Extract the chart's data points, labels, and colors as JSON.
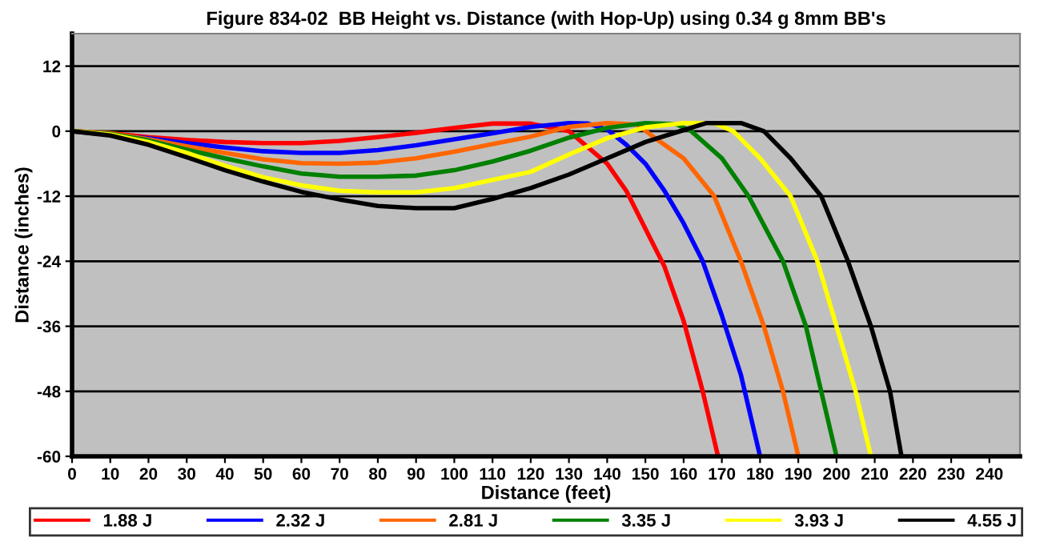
{
  "chart_data": {
    "type": "line",
    "title": "Figure 834-02  BB Height vs. Distance (with Hop-Up) using 0.34 g 8mm BB's",
    "xlabel": "Distance (feet)",
    "ylabel": "Distance (inches)",
    "xlim": [
      0,
      248
    ],
    "xticks": [
      0,
      10,
      20,
      30,
      40,
      50,
      60,
      70,
      80,
      90,
      100,
      110,
      120,
      130,
      140,
      150,
      160,
      170,
      180,
      190,
      200,
      210,
      220,
      230,
      240
    ],
    "ylim": [
      -60,
      18
    ],
    "yticks": [
      -60,
      -48,
      -36,
      -24,
      -12,
      0,
      12
    ],
    "grid": "y",
    "legend": "bottom",
    "marker": "none",
    "line_style": "solid",
    "series": [
      {
        "name": "1.88 J",
        "color": "#ff0000",
        "x": [
          0,
          10,
          20,
          30,
          40,
          50,
          60,
          70,
          80,
          90,
          100,
          110,
          120,
          130,
          140,
          145,
          150,
          155,
          160,
          165,
          169
        ],
        "values": [
          0,
          -0.4,
          -1.1,
          -1.6,
          -2.0,
          -2.2,
          -2.2,
          -1.8,
          -1.1,
          -0.3,
          0.6,
          1.4,
          1.4,
          0,
          -6,
          -11,
          -18,
          -25,
          -35,
          -48,
          -60
        ]
      },
      {
        "name": "2.32 J",
        "color": "#0000ff",
        "x": [
          0,
          20,
          30,
          40,
          50,
          60,
          70,
          80,
          90,
          100,
          110,
          120,
          130,
          135,
          140,
          145,
          150,
          155,
          160,
          165,
          170,
          175,
          180
        ],
        "values": [
          0,
          -1.3,
          -2.2,
          -3.0,
          -3.7,
          -4.0,
          -4.0,
          -3.5,
          -2.6,
          -1.5,
          -0.4,
          0.8,
          1.5,
          1.4,
          0.3,
          -2.5,
          -6,
          -11,
          -17,
          -24,
          -34,
          -45,
          -60
        ]
      },
      {
        "name": "2.81 J",
        "color": "#ff6600",
        "x": [
          0,
          10,
          20,
          30,
          40,
          50,
          60,
          70,
          80,
          90,
          100,
          110,
          120,
          130,
          140,
          148,
          152,
          160,
          168,
          175,
          181,
          186,
          190
        ],
        "values": [
          0,
          -0.4,
          -1.5,
          -2.8,
          -4.0,
          -5.2,
          -5.9,
          -6.0,
          -5.8,
          -5.0,
          -3.8,
          -2.4,
          -1.0,
          0.8,
          1.5,
          1.2,
          -1,
          -5,
          -12,
          -24,
          -36,
          -48,
          -60
        ]
      },
      {
        "name": "3.35 J",
        "color": "#008000",
        "x": [
          0,
          10,
          20,
          30,
          40,
          50,
          60,
          70,
          80,
          90,
          100,
          110,
          120,
          130,
          140,
          150,
          158,
          162,
          170,
          177,
          186,
          192,
          196,
          200
        ],
        "values": [
          0,
          -0.5,
          -1.7,
          -3.4,
          -5.0,
          -6.5,
          -7.8,
          -8.4,
          -8.4,
          -8.2,
          -7.2,
          -5.6,
          -3.6,
          -1.2,
          0.6,
          1.5,
          1.3,
          0,
          -5,
          -12,
          -24,
          -36,
          -48,
          -60
        ]
      },
      {
        "name": "3.93 J",
        "color": "#ffff00",
        "x": [
          0,
          10,
          20,
          30,
          40,
          50,
          60,
          70,
          80,
          90,
          100,
          110,
          120,
          130,
          140,
          150,
          160,
          168,
          173,
          180,
          188,
          195,
          200,
          205,
          209
        ],
        "values": [
          0,
          -0.6,
          -2.0,
          -4.0,
          -6.4,
          -8.5,
          -10.0,
          -11.0,
          -11.3,
          -11.3,
          -10.5,
          -9.0,
          -7.5,
          -4.3,
          -1.3,
          0.7,
          1.5,
          1.5,
          0,
          -5,
          -12,
          -24,
          -36,
          -48,
          -60
        ]
      },
      {
        "name": "4.55 J",
        "color": "#000000",
        "x": [
          0,
          10,
          20,
          30,
          40,
          50,
          60,
          70,
          80,
          90,
          100,
          110,
          120,
          130,
          140,
          150,
          160,
          166,
          175,
          181,
          188,
          196,
          203,
          209,
          214,
          217
        ],
        "values": [
          0,
          -0.8,
          -2.5,
          -4.8,
          -7.2,
          -9.3,
          -11.2,
          -12.6,
          -13.8,
          -14.2,
          -14.2,
          -12.5,
          -10.5,
          -8.0,
          -5.0,
          -2.0,
          0.2,
          1.5,
          1.5,
          0,
          -5,
          -12,
          -24,
          -36,
          -48,
          -60
        ]
      }
    ]
  }
}
